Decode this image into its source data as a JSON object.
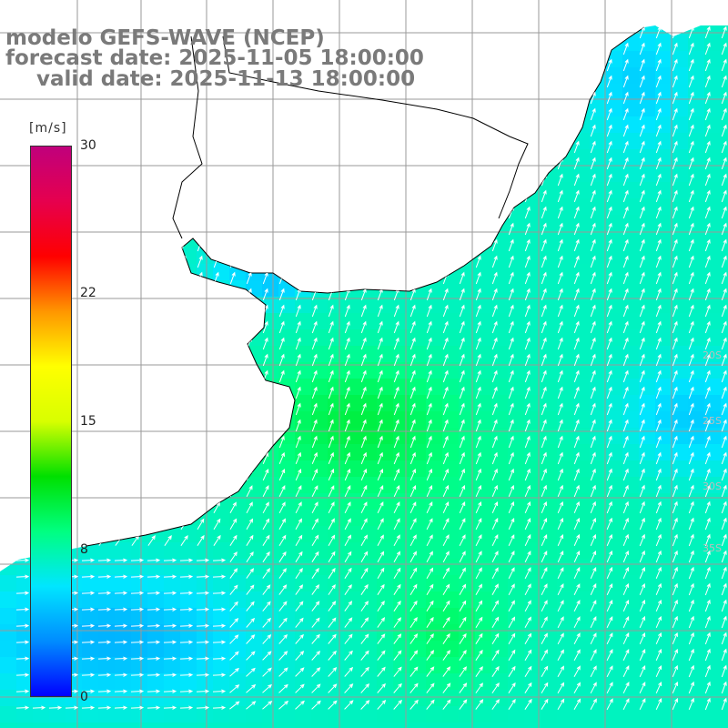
{
  "header": {
    "model_line": "modelo GEFS-WAVE (NCEP)",
    "forecast_line": "forecast date: 2025-11-05 18:00:00",
    "valid_line": "valid date: 2025-11-13 18:00:00"
  },
  "colorbar": {
    "unit": "[m/s]",
    "min": 0,
    "max": 30,
    "ticks": [
      {
        "value": 30,
        "label": "30"
      },
      {
        "value": 22,
        "label": "22"
      },
      {
        "value": 15,
        "label": "15"
      },
      {
        "value": 8,
        "label": "8"
      },
      {
        "value": 0,
        "label": "0"
      }
    ],
    "colors": [
      "#0000ff",
      "#008cff",
      "#00e6ff",
      "#00ff80",
      "#00e000",
      "#d8ff00",
      "#ffff00",
      "#ff9600",
      "#ff0000",
      "#e6004e",
      "#c0007c"
    ]
  },
  "map": {
    "ocean_base_color": "#00e8ff",
    "land_color": "#ffffff",
    "grid_color": "#9a9a9a",
    "coast_color": "#000000",
    "arrow_color": "#ffffff",
    "lat_labels": [
      "35S",
      "30S",
      "25S",
      "20S"
    ]
  }
}
